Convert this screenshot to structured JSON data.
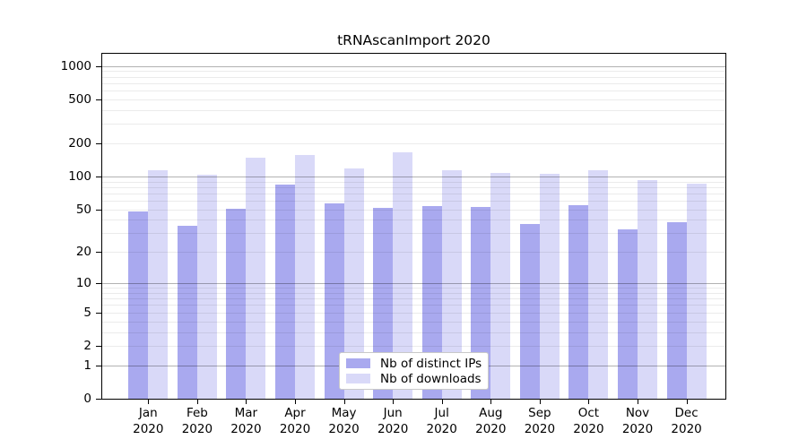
{
  "figure": {
    "title": "tRNAscanImport 2020"
  },
  "chart_data": {
    "type": "bar",
    "title": "tRNAscanImport 2020",
    "categories": [
      "Jan",
      "Feb",
      "Mar",
      "Apr",
      "May",
      "Jun",
      "Jul",
      "Aug",
      "Sep",
      "Oct",
      "Nov",
      "Dec"
    ],
    "year_label": "2020",
    "series": [
      {
        "name": "Nb of distinct IPs",
        "color": "#a9a9ef",
        "values": [
          48,
          35,
          51,
          85,
          57,
          52,
          54,
          53,
          37,
          55,
          33,
          38
        ]
      },
      {
        "name": "Nb of downloads",
        "color": "#d9d9f8",
        "values": [
          113,
          104,
          148,
          158,
          119,
          166,
          115,
          107,
          105,
          113,
          92,
          86
        ]
      }
    ],
    "y_axis": {
      "scale": "log1p",
      "ticks": [
        0,
        1,
        2,
        5,
        10,
        20,
        50,
        100,
        200,
        500,
        1000
      ],
      "limit": 1000
    },
    "grid": {
      "major_values": [
        1,
        10,
        100,
        1000
      ],
      "minor_mantissas": [
        2,
        3,
        4,
        5,
        6,
        7,
        8,
        9
      ],
      "major_color": "rgba(0,0,0,0.30)",
      "minor_color": "rgba(0,0,0,0.08)"
    },
    "legend": {
      "entries": [
        "Nb of distinct IPs",
        "Nb of downloads"
      ]
    },
    "colors": {
      "axis": "#000000",
      "text": "#000000",
      "background": "#ffffff"
    }
  }
}
